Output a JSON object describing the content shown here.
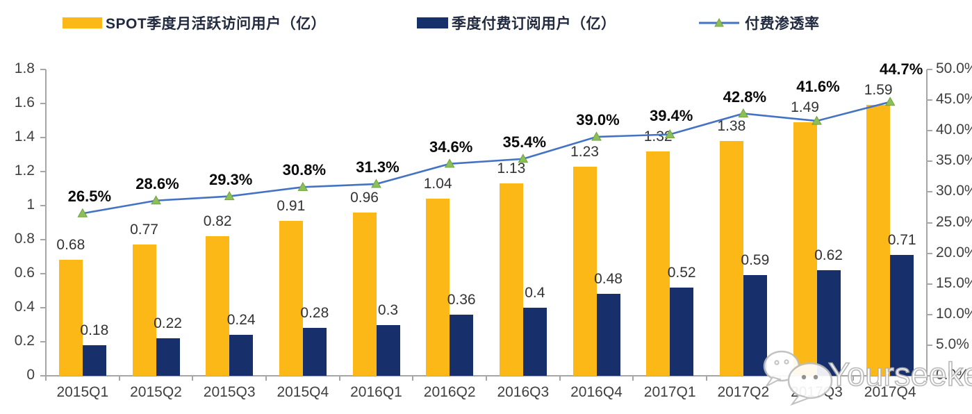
{
  "legend": {
    "items": [
      {
        "label": "SPOT季度月活跃访问用户（亿）",
        "swatch": "bar",
        "color": "#FBB817"
      },
      {
        "label": "季度付费订阅用户（亿）",
        "swatch": "bar",
        "color": "#17306B"
      },
      {
        "label": "付费渗透率",
        "swatch": "line-marker",
        "color": "#4472C4",
        "marker_color": "#8CBE5A"
      }
    ]
  },
  "watermark": {
    "text": "Yourseeker",
    "icon": "wechat-icon"
  },
  "colors": {
    "mau_bar": "#FBB817",
    "subs_bar": "#17306B",
    "line": "#4472C4",
    "marker_fill": "#8CBE5A",
    "marker_stroke": "#6fa43a",
    "axis": "#a6a6a6",
    "tick_text": "#3f3f3f",
    "value_text": "#333333",
    "percent_text": "#0a0a0a"
  },
  "chart_data": {
    "type": "bar",
    "subtype": "combo dual-axis: grouped bars + percentage line",
    "title": "",
    "categories": [
      "2015Q1",
      "2015Q2",
      "2015Q3",
      "2015Q4",
      "2016Q1",
      "2016Q2",
      "2016Q3",
      "2016Q4",
      "2017Q1",
      "2017Q2",
      "2017Q3",
      "2017Q4"
    ],
    "series": [
      {
        "name": "SPOT季度月活跃访问用户（亿）",
        "type": "bar",
        "axis": "left",
        "color": "#FBB817",
        "values": [
          0.68,
          0.77,
          0.82,
          0.91,
          0.96,
          1.04,
          1.13,
          1.23,
          1.32,
          1.38,
          1.49,
          1.59
        ],
        "labels": [
          "0.68",
          "0.77",
          "0.82",
          "0.91",
          "0.96",
          "1.04",
          "1.13",
          "1.23",
          "1.32",
          "1.38",
          "1.49",
          "1.59"
        ]
      },
      {
        "name": "季度付费订阅用户（亿）",
        "type": "bar",
        "axis": "left",
        "color": "#17306B",
        "values": [
          0.18,
          0.22,
          0.24,
          0.28,
          0.3,
          0.36,
          0.4,
          0.48,
          0.52,
          0.59,
          0.62,
          0.71
        ],
        "labels": [
          "0.18",
          "0.22",
          "0.24",
          "0.28",
          "0.3",
          "0.36",
          "0.4",
          "0.48",
          "0.52",
          "0.59",
          "0.62",
          "0.71"
        ]
      },
      {
        "name": "付费渗透率",
        "type": "line",
        "axis": "right",
        "color": "#4472C4",
        "marker": "triangle",
        "marker_color": "#8CBE5A",
        "values": [
          26.5,
          28.6,
          29.3,
          30.8,
          31.3,
          34.6,
          35.4,
          39.0,
          39.4,
          42.8,
          41.6,
          44.7
        ],
        "labels": [
          "26.5%",
          "28.6%",
          "29.3%",
          "30.8%",
          "31.3%",
          "34.6%",
          "35.4%",
          "39.0%",
          "39.4%",
          "42.8%",
          "41.6%",
          "44.7%"
        ]
      }
    ],
    "left_axis": {
      "min": 0,
      "max": 1.8,
      "step": 0.2,
      "tick_labels": [
        "1.8",
        "1.6",
        "1.4",
        "1.2",
        "1",
        "0.8",
        "0.6",
        "0.4",
        "0.2",
        "0"
      ]
    },
    "right_axis": {
      "min": 0,
      "max": 50,
      "step": 5,
      "tick_labels": [
        "50.0%",
        "45.0%",
        "40.0%",
        "35.0%",
        "30.0%",
        "25.0%",
        "20.0%",
        "15.0%",
        "10.0%",
        "5.0%",
        "0.0%"
      ]
    },
    "grid": false,
    "legend_position": "top"
  }
}
